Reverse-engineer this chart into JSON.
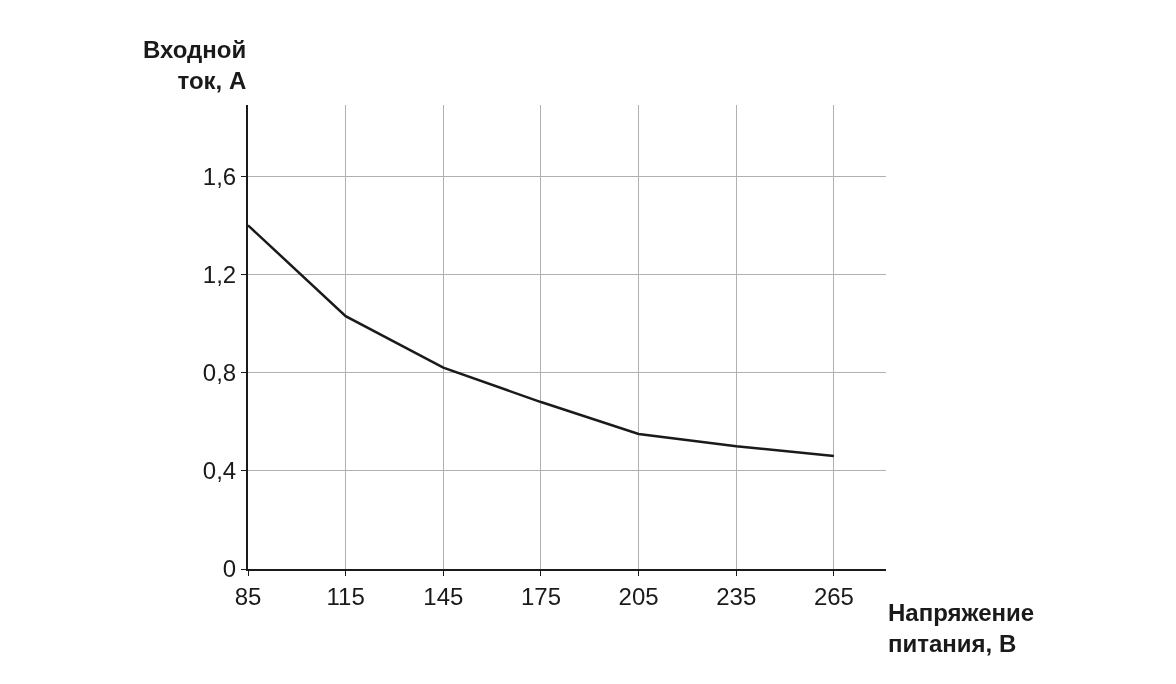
{
  "chart_data": {
    "type": "line",
    "xlabel": "Напряжение\nпитания, В",
    "ylabel": "Входной\nток, А",
    "x": [
      85,
      115,
      145,
      175,
      205,
      235,
      265
    ],
    "series": [
      {
        "color": "#1a1a1a",
        "values": [
          1.4,
          1.03,
          0.82,
          0.68,
          0.55,
          0.5,
          0.46
        ]
      }
    ],
    "xlim": [
      85,
      281
    ],
    "ylim": [
      0,
      1.89
    ],
    "xticks": [
      85,
      115,
      145,
      175,
      205,
      235,
      265
    ],
    "yticks": [
      0,
      {
        "value": 0.4,
        "label": "0,4"
      },
      {
        "value": 0.8,
        "label": "0,8"
      },
      {
        "value": 1.2,
        "label": "1,2"
      },
      {
        "value": 1.6,
        "label": "1,6"
      }
    ],
    "grid": true,
    "marker": "none",
    "line_style": "solid",
    "legend": false
  }
}
